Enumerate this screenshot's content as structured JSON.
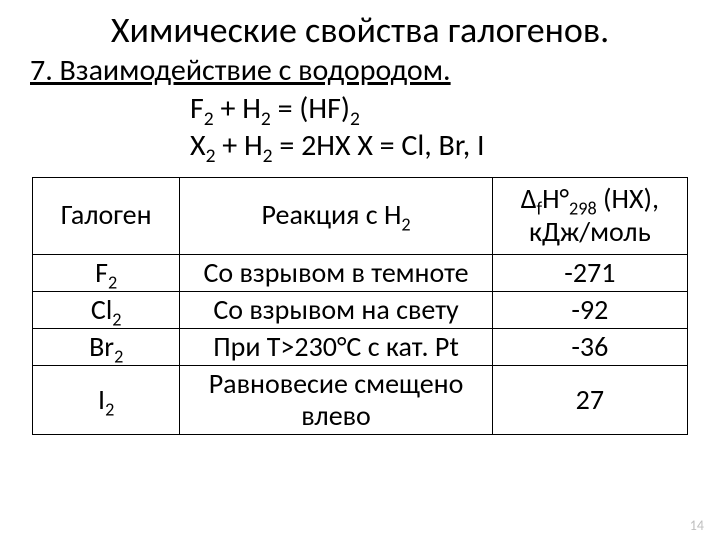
{
  "title": "Химические свойства галогенов.",
  "subtitle": "7. Взаимодействие с водородом.",
  "eq1_lhs": "F",
  "eq1_mid": " + H",
  "eq1_rhs": " = (HF)",
  "eq2_lhs": "X",
  "eq2_mid": " + H",
  "eq2_rhs": " = 2HX   X = Cl, Br, I",
  "headers": {
    "c1": "Галоген",
    "c2_pre": "Реакция с H",
    "c3_pre": "Δ",
    "c3_sub1": "f",
    "c3_mid": "H°",
    "c3_sub2": "298",
    "c3_post": " (HX),",
    "c3_line2": "кДж/моль"
  },
  "rows": [
    {
      "halogen": "F",
      "reaction": "Со взрывом в темноте",
      "dH": "-271"
    },
    {
      "halogen": "Cl",
      "reaction": "Со взрывом на свету",
      "dH": "-92"
    },
    {
      "halogen": "Br",
      "reaction": "При Т>230°С  с кат. Pt",
      "dH": "-36"
    },
    {
      "halogen": "I",
      "reaction_l1": "Равновесие смещено",
      "reaction_l2": "влево",
      "dH": "27"
    }
  ],
  "page_number": "14",
  "sub2": "2"
}
